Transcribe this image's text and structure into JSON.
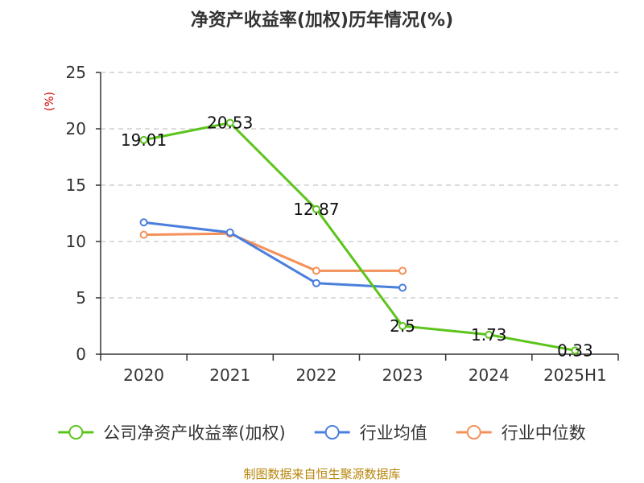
{
  "chart_data": {
    "type": "line",
    "title": "净资产收益率(加权)历年情况(%)",
    "ylabel": "(%)",
    "xlabel": "",
    "categories": [
      "2020",
      "2021",
      "2022",
      "2023",
      "2024",
      "2025H1"
    ],
    "ylim": [
      0,
      25
    ],
    "yticks": [
      0,
      5,
      10,
      15,
      20,
      25
    ],
    "grid": true,
    "legend_position": "bottom",
    "series": [
      {
        "name": "公司净资产收益率(加权)",
        "color": "#5cc41c",
        "values": [
          19.01,
          20.53,
          12.87,
          2.5,
          1.73,
          0.33
        ],
        "data_labels": [
          "19.01",
          "20.53",
          "12.87",
          "2.5",
          "1.73",
          "0.33"
        ]
      },
      {
        "name": "行业均值",
        "color": "#4a7fdc",
        "values": [
          11.7,
          10.8,
          6.3,
          5.9,
          null,
          null
        ]
      },
      {
        "name": "行业中位数",
        "color": "#f4905a",
        "values": [
          10.6,
          10.7,
          7.4,
          7.4,
          null,
          null
        ]
      }
    ],
    "source": "制图数据来自恒生聚源数据库"
  }
}
